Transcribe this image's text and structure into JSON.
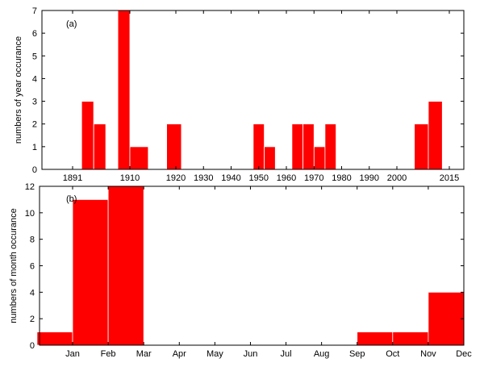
{
  "chart_data": [
    {
      "type": "bar",
      "panel_label": "(a)",
      "ylabel": "numbers of year occurance",
      "xlabel": "",
      "xlim": [
        1876,
        1918
      ],
      "ylim": [
        0,
        7
      ],
      "xticks": [
        1891,
        1910,
        1920,
        1930,
        1940,
        1950,
        1960,
        1970,
        1980,
        1990,
        2000,
        2015
      ],
      "yticks": [
        0,
        1,
        2,
        3,
        4,
        5,
        6,
        7
      ],
      "bars": [
        {
          "x0": 1894.0,
          "x1": 1898.0,
          "value": 3
        },
        {
          "x0": 1898.0,
          "x1": 1902.0,
          "value": 2
        },
        {
          "x0": 1906.0,
          "x1": 1910.0,
          "value": 7
        },
        {
          "x0": 1910.0,
          "x1": 1914.0,
          "value": 1
        },
        {
          "x0": 1918.0,
          "x1": 1922.0,
          "value": 2
        },
        {
          "x0": 1948.0,
          "x1": 1952.0,
          "value": 2
        },
        {
          "x0": 1952.0,
          "x1": 1956.0,
          "value": 1
        },
        {
          "x0": 1962.0,
          "x1": 1966.0,
          "value": 2
        },
        {
          "x0": 1966.0,
          "x1": 1970.0,
          "value": 2
        },
        {
          "x0": 1970.0,
          "x1": 1974.0,
          "value": 1
        },
        {
          "x0": 1974.0,
          "x1": 1978.0,
          "value": 2
        },
        {
          "x0": 2005.0,
          "x1": 2009.0,
          "value": 2
        },
        {
          "x0": 2009.0,
          "x1": 2013.0,
          "value": 3
        }
      ],
      "bar_color": "#ff0000",
      "grid": false
    },
    {
      "type": "bar",
      "panel_label": "(b)",
      "ylabel": "numbers of month occurance",
      "xlabel": "",
      "categories": [
        "Jan",
        "Feb",
        "Mar",
        "Apr",
        "May",
        "Jun",
        "Jul",
        "Aug",
        "Sep",
        "Oct",
        "Nov",
        "Dec"
      ],
      "values": [
        1,
        11,
        12,
        0,
        0,
        0,
        0,
        0,
        0,
        1,
        1,
        4
      ],
      "ylim": [
        0,
        12
      ],
      "yticks": [
        0,
        2,
        4,
        6,
        8,
        10,
        12
      ],
      "bar_color": "#ff0000",
      "grid": false
    }
  ]
}
